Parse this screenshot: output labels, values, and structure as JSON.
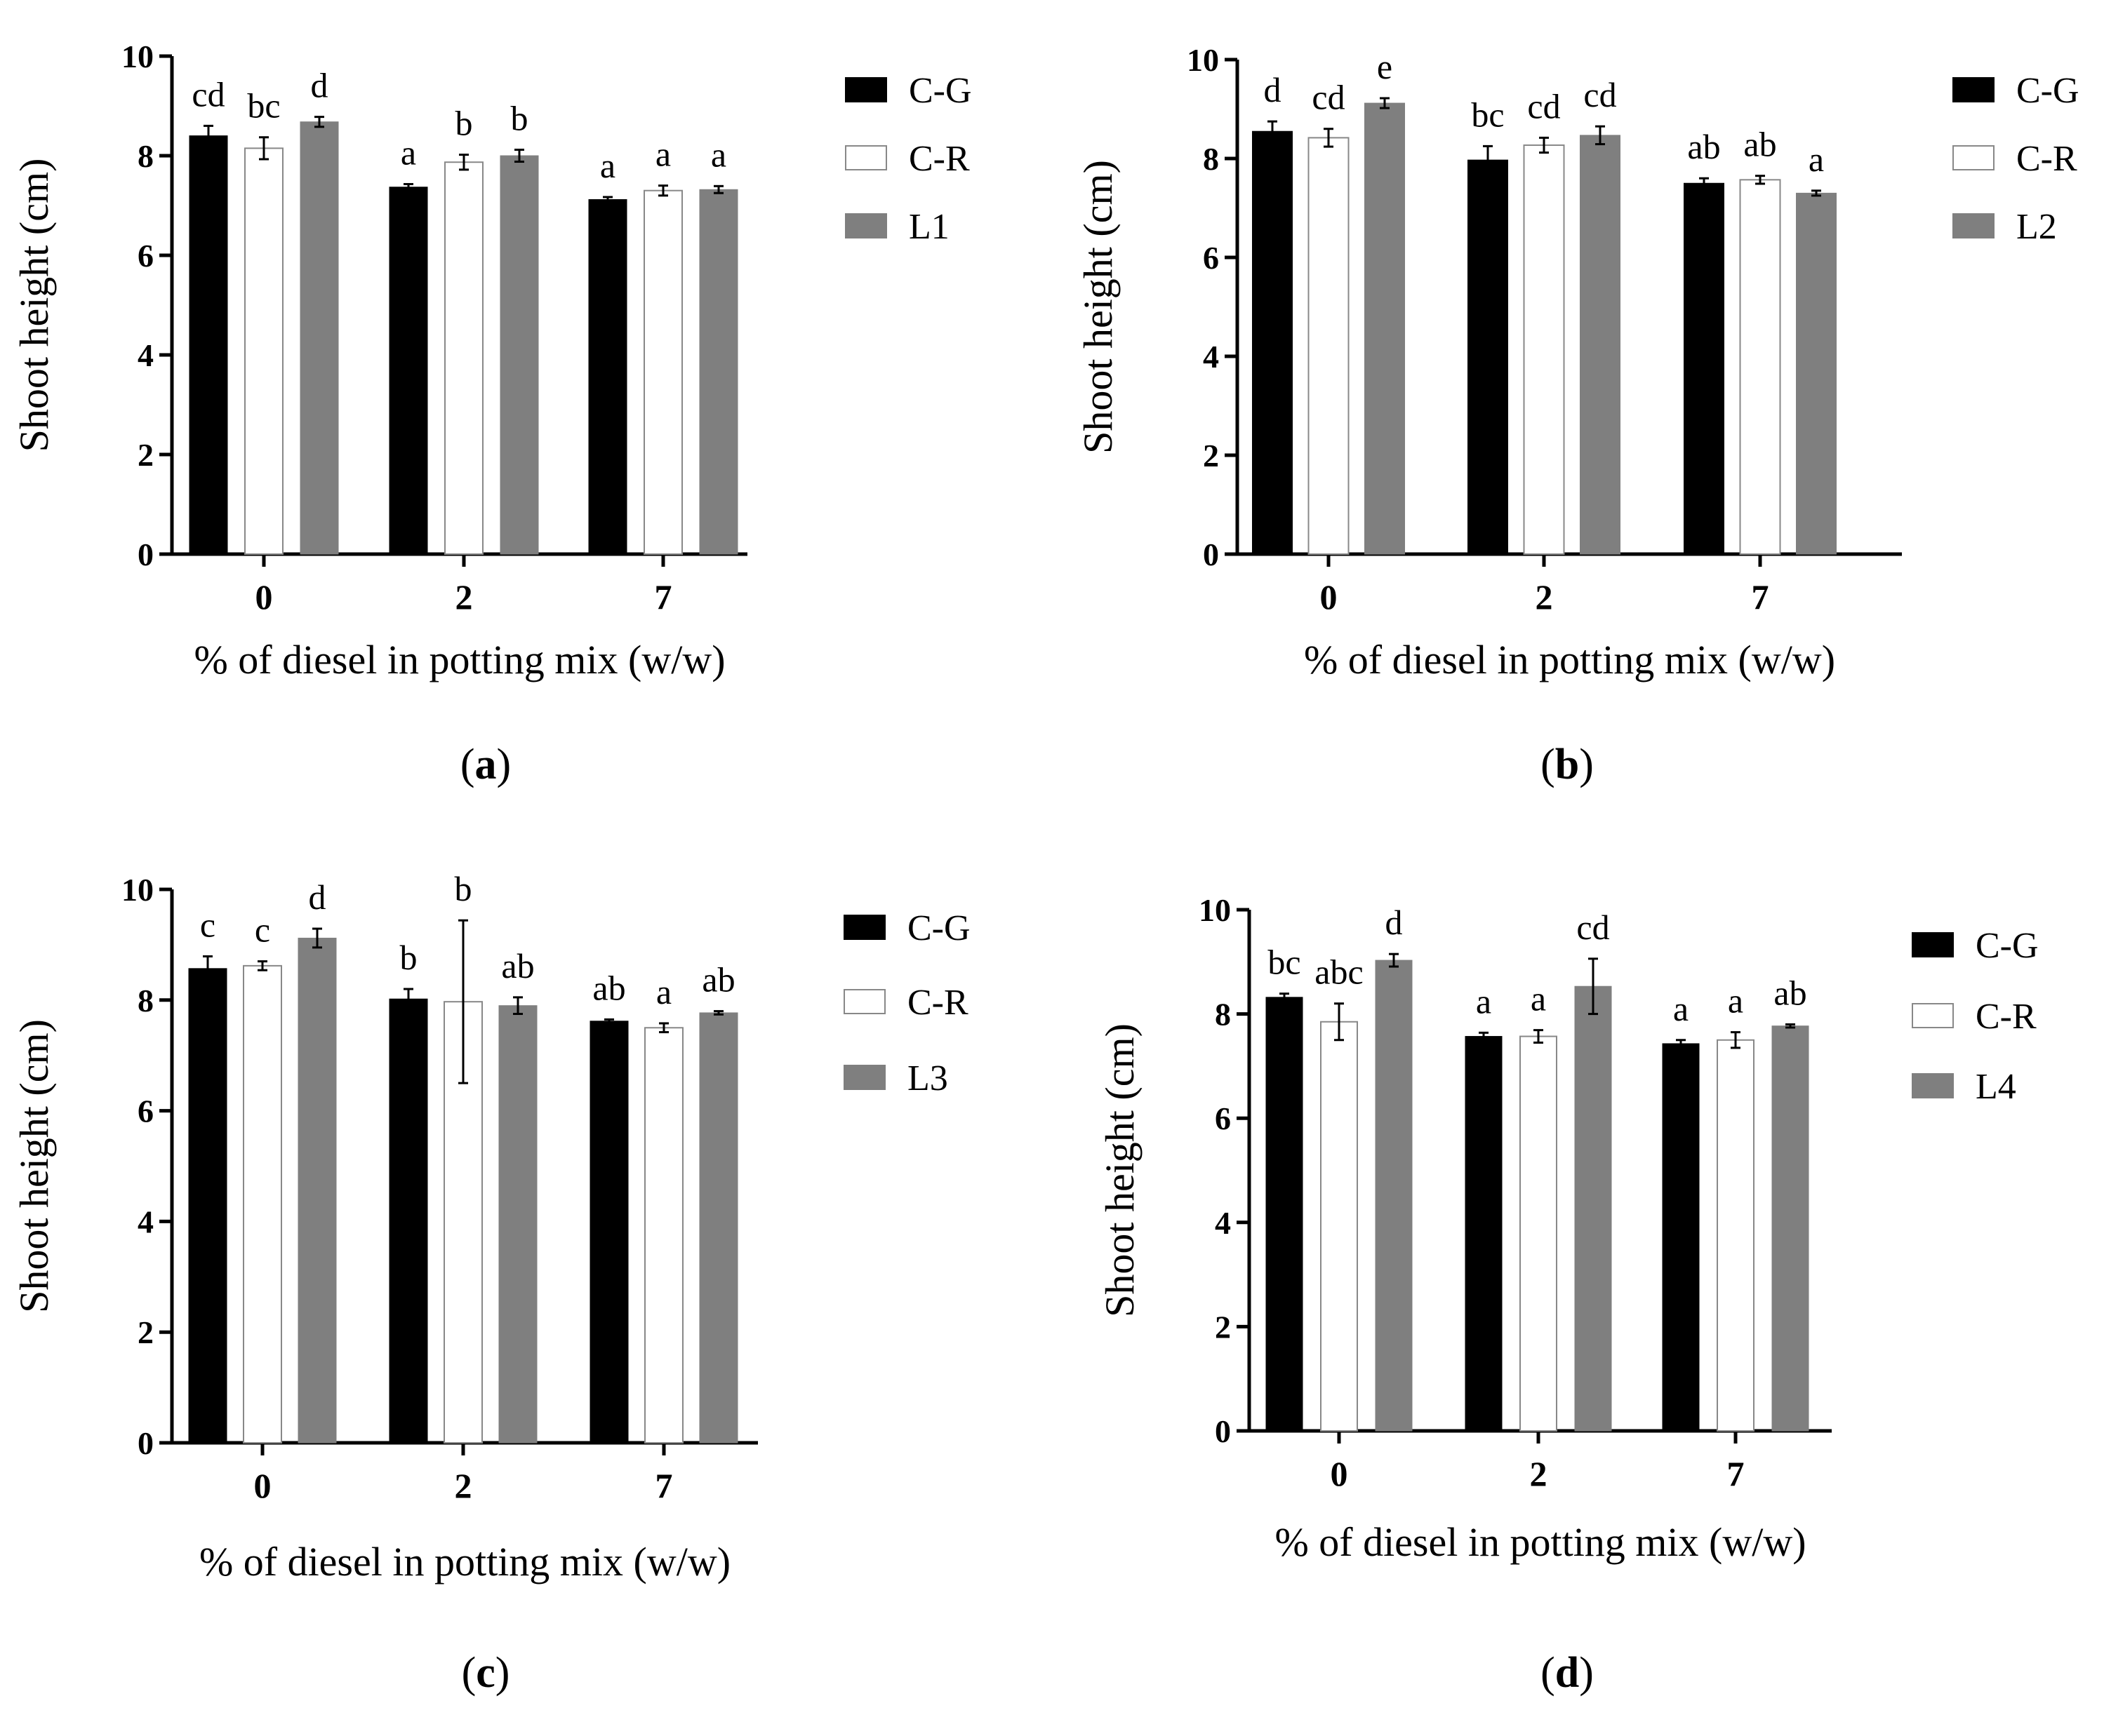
{
  "colors": {
    "C-G": "#000000",
    "C-R": "#ffffff",
    "L": "#7f7f7f"
  },
  "chart_data": [
    {
      "type": "bar",
      "panel_label": "(a)",
      "categories": [
        "0",
        "2",
        "7"
      ],
      "xlabel": "% of diesel in potting mix (w/w)",
      "ylabel": "Shoot height (cm)",
      "ylim": [
        0,
        10
      ],
      "yticks": [
        "0",
        "2",
        "4",
        "6",
        "8",
        "10"
      ],
      "legend": [
        "C-G",
        "C-R",
        "L1"
      ],
      "series": [
        {
          "name": "C-G",
          "values": [
            8.4,
            7.37,
            7.12
          ],
          "errors": [
            0.2,
            0.06,
            0.05
          ],
          "labels": [
            "cd",
            "a",
            "a"
          ]
        },
        {
          "name": "C-R",
          "values": [
            8.15,
            7.87,
            7.3
          ],
          "errors": [
            0.22,
            0.15,
            0.1
          ],
          "labels": [
            "bc",
            "b",
            "a"
          ]
        },
        {
          "name": "L1",
          "values": [
            8.68,
            8.0,
            7.32
          ],
          "errors": [
            0.1,
            0.12,
            0.07
          ],
          "labels": [
            "d",
            "b",
            "a"
          ]
        }
      ]
    },
    {
      "type": "bar",
      "panel_label": "(b)",
      "categories": [
        "0",
        "2",
        "7"
      ],
      "xlabel": "% of diesel in potting mix (w/w)",
      "ylabel": "Shoot height (cm)",
      "ylim": [
        0,
        10
      ],
      "yticks": [
        "0",
        "2",
        "4",
        "6",
        "8",
        "10"
      ],
      "legend": [
        "C-G",
        "C-R",
        "L2"
      ],
      "series": [
        {
          "name": "C-G",
          "values": [
            8.55,
            7.97,
            7.5
          ],
          "errors": [
            0.2,
            0.28,
            0.1
          ],
          "labels": [
            "d",
            "bc",
            "ab"
          ]
        },
        {
          "name": "C-R",
          "values": [
            8.42,
            8.27,
            7.57
          ],
          "errors": [
            0.18,
            0.15,
            0.08
          ],
          "labels": [
            "cd",
            "cd",
            "ab"
          ]
        },
        {
          "name": "L2",
          "values": [
            9.12,
            8.47,
            7.3
          ],
          "errors": [
            0.1,
            0.18,
            0.05
          ],
          "labels": [
            "e",
            "cd",
            "a"
          ]
        }
      ]
    },
    {
      "type": "bar",
      "panel_label": "(c)",
      "categories": [
        "0",
        "2",
        "7"
      ],
      "xlabel": "% of diesel in potting mix (w/w)",
      "ylabel": "Shoot height (cm)",
      "ylim": [
        0,
        10
      ],
      "yticks": [
        "0",
        "2",
        "4",
        "6",
        "8",
        "10"
      ],
      "legend": [
        "C-G",
        "C-R",
        "L3"
      ],
      "series": [
        {
          "name": "C-G",
          "values": [
            8.57,
            8.02,
            7.62
          ],
          "errors": [
            0.22,
            0.18,
            0.03
          ],
          "labels": [
            "c",
            "b",
            "ab"
          ]
        },
        {
          "name": "C-R",
          "values": [
            8.62,
            7.97,
            7.5
          ],
          "errors": [
            0.08,
            1.47,
            0.08
          ],
          "labels": [
            "c",
            "b",
            "a"
          ]
        },
        {
          "name": "L3",
          "values": [
            9.12,
            7.9,
            7.77
          ],
          "errors": [
            0.17,
            0.15,
            0.03
          ],
          "labels": [
            "d",
            "ab",
            "ab"
          ]
        }
      ]
    },
    {
      "type": "bar",
      "panel_label": "(d)",
      "categories": [
        "0",
        "2",
        "7"
      ],
      "xlabel": "% of diesel in potting mix (w/w)",
      "ylabel": "Shoot height (cm)",
      "ylim": [
        0,
        10
      ],
      "yticks": [
        "0",
        "2",
        "4",
        "6",
        "8",
        "10"
      ],
      "legend": [
        "C-G",
        "C-R",
        "L4"
      ],
      "series": [
        {
          "name": "C-G",
          "values": [
            8.32,
            7.57,
            7.43
          ],
          "errors": [
            0.07,
            0.07,
            0.07
          ],
          "labels": [
            "bc",
            "a",
            "a"
          ]
        },
        {
          "name": "C-R",
          "values": [
            7.85,
            7.57,
            7.5
          ],
          "errors": [
            0.35,
            0.12,
            0.15
          ],
          "labels": [
            "abc",
            "a",
            "a"
          ]
        },
        {
          "name": "L4",
          "values": [
            9.03,
            8.53,
            7.77
          ],
          "errors": [
            0.12,
            0.53,
            0.03
          ],
          "labels": [
            "d",
            "cd",
            "ab"
          ]
        }
      ]
    }
  ]
}
